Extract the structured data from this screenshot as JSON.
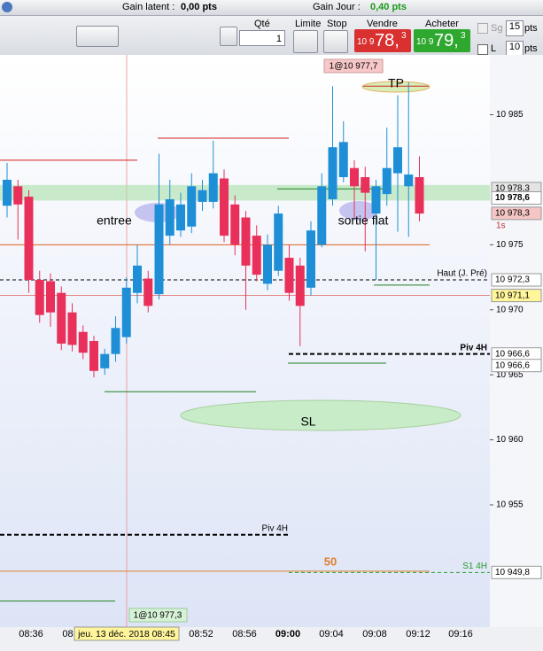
{
  "header": {
    "gain_latent_label": "Gain latent :",
    "gain_latent": "0,00 pts",
    "gain_jour_label": "Gain Jour :",
    "gain_jour": "0,40 pts"
  },
  "toolbar": {
    "qty_label": "Qté",
    "qty": "1",
    "limit": "Limite",
    "stop": "Stop",
    "sell_label": "Vendre",
    "sell_prefix": "10 9",
    "sell_big": "78,",
    "sell_small": "3",
    "buy_label": "Acheter",
    "buy_prefix": "10 9",
    "buy_big": "79,",
    "buy_small": "3",
    "sg_label": "Sg",
    "sg_value": "15",
    "sg_unit": "pts",
    "l_label": "L",
    "l_value": "10",
    "l_unit": "pts"
  },
  "chart_data": {
    "type": "candlestick",
    "ylim": [
      10945.6,
      10989.6
    ],
    "yticks": [
      {
        "value": 10955,
        "label": "10 955"
      },
      {
        "value": 10960,
        "label": "10 960"
      },
      {
        "value": 10965,
        "label": "10 965"
      },
      {
        "value": 10970,
        "label": "10 970"
      },
      {
        "value": 10975,
        "label": "10 975"
      },
      {
        "value": 10985,
        "label": "10 985"
      }
    ],
    "x_labels": [
      "08:36",
      "08:",
      "08:52",
      "08:56",
      "09:00",
      "09:04",
      "09:08",
      "09:12",
      "09:16"
    ],
    "cursor_date": "jeu. 13 déc. 2018 08:45",
    "up_color": "#1e8fd6",
    "down_color": "#e8305a",
    "open": [
      10978,
      10979.5,
      10978.7,
      10972.3,
      10972.2,
      10971.3,
      10969.8,
      10968.3,
      10967.6,
      10965.5,
      10966.6,
      10967.9,
      10971.3,
      10972.4,
      10971.2,
      10975.7,
      10976.1,
      10976.4,
      10978.3,
      10978.3,
      10980.1,
      10978.1,
      10977.1,
      10975.7,
      10972,
      10973,
      10974,
      10973.4,
      10971.7,
      10975,
      10978.5,
      10980.2,
      10980.9,
      10980.2,
      10977.4,
      10978.9,
      10980.5,
      10979.5,
      10980.2
    ],
    "high": [
      10981.3,
      10980,
      10979.2,
      10973,
      10972.8,
      10971.8,
      10970.5,
      10968.8,
      10968,
      10967,
      10969.5,
      10972.5,
      10975,
      10973,
      10982,
      10980,
      10979,
      10980.5,
      10980,
      10983,
      10980.8,
      10978.8,
      10977.6,
      10976.5,
      10975.8,
      10978,
      10975,
      10974,
      10976.8,
      10980.5,
      10987.2,
      10984.5,
      10981.5,
      10981,
      10980,
      10984,
      10986.5,
      10987.5,
      10981.8
    ],
    "low": [
      10977.1,
      10975.4,
      10971.3,
      10969,
      10968.7,
      10966.9,
      10966.8,
      10966.2,
      10964.8,
      10965,
      10966,
      10967.4,
      10970.5,
      10969.8,
      10970.8,
      10975,
      10975.6,
      10975.9,
      10977.6,
      10977.8,
      10975.2,
      10974.2,
      10970,
      10972.2,
      10971.5,
      10972.6,
      10970.7,
      10967.2,
      10971.1,
      10974.8,
      10978,
      10979.8,
      10977,
      10974.5,
      10972.3,
      10978,
      10976,
      10975.6,
      10976.8
    ],
    "close": [
      10980,
      10978.1,
      10972.3,
      10969.6,
      10969.8,
      10967.4,
      10967.3,
      10966.7,
      10965.3,
      10966.6,
      10968.6,
      10971.7,
      10973.4,
      10970.3,
      10978.1,
      10978.5,
      10978.1,
      10979.5,
      10979.2,
      10980.5,
      10975.7,
      10975,
      10973.4,
      10972.7,
      10975,
      10977.4,
      10971.3,
      10970.3,
      10976.1,
      10979.5,
      10982.5,
      10982.9,
      10979.5,
      10979,
      10979.5,
      10980.9,
      10982.5,
      10980.4,
      10977.4
    ],
    "band": [
      10978.4,
      10979.6
    ],
    "segments": [
      {
        "value": 10987.2,
        "color": "#d42020"
      },
      {
        "value": 10983.2,
        "color": "#d42020"
      },
      {
        "value": 10981.5,
        "color": "#d42020"
      },
      {
        "value": 10975,
        "color": "#e06020"
      },
      {
        "value": 10979.3,
        "color": "#208020"
      },
      {
        "value": 10971.9,
        "color": "#208020"
      },
      {
        "value": 10965.9,
        "color": "#208020"
      },
      {
        "value": 10963.7,
        "color": "#208020"
      },
      {
        "value": 10947.6,
        "color": "#208020"
      },
      {
        "value": 10949.9,
        "color": "#e08030"
      }
    ],
    "levels": [
      {
        "name": "Haut (J. Pré)",
        "value": 10972.3,
        "label": "10 972,3"
      },
      {
        "value": 10971.1,
        "label": "10 971,1"
      },
      {
        "name": "Piv 4H",
        "value": 10966.6,
        "label": "10 966,6"
      },
      {
        "name": "Piv 4H",
        "value": 10952.7
      },
      {
        "name": "S1 4H",
        "value": 10949.8,
        "label": "10 949,8"
      }
    ],
    "price_labels": [
      {
        "value": 10978.3,
        "label": "10 978,3",
        "bg": "#e4e4e4"
      },
      {
        "value": 10978.6,
        "label": "10 978,6",
        "bg": "#ffffff"
      },
      {
        "value": 10978.3,
        "label": "10 978,3",
        "bg": "#f6c6c6",
        "tag": "1s"
      },
      {
        "value": 10966.6,
        "label": "10 966,6",
        "bg": "#ffffff"
      }
    ],
    "annotations": {
      "entree": "entree",
      "sortie": "sortie flat",
      "tp": "TP",
      "sl": "SL",
      "fifty": "50",
      "order_top": "1@10 977,7",
      "order_bottom": "1@10 977,3"
    }
  }
}
